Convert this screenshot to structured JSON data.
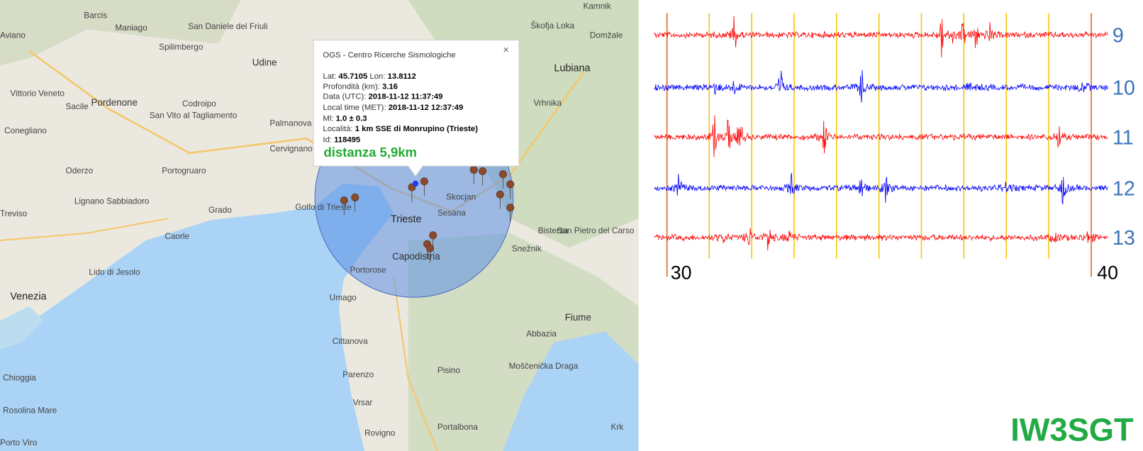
{
  "map": {
    "labels": [
      "Barcis",
      "Maniago",
      "San Daniele del Friuli",
      "Spilimbergo",
      "Aviano",
      "Udine",
      "Vittorio Veneto",
      "Pordenone",
      "Sacile",
      "Codroipo",
      "San Vito al Tagliamento",
      "Conegliano",
      "Palmanova",
      "Cervignano del Friuli",
      "Oderzo",
      "Portogruaro",
      "Grado",
      "Lignano Sabbiadoro",
      "Treviso",
      "Caorle",
      "Lido di Jesolo",
      "Venezia",
      "Golfo di Trieste",
      "Trieste",
      "Sesana",
      "Capodistria",
      "Portorose",
      "Umago",
      "Cittanova",
      "Parenzo",
      "Vrsar",
      "Rovigno",
      "Pisino",
      "Lubiana",
      "Vrhnika",
      "Bisterza",
      "Snežnik",
      "Abbazia",
      "Fiume",
      "Moščenička Draga",
      "Chioggia",
      "Rosolina Mare",
      "Porto Viro",
      "Kamnik",
      "Škofja Loka",
      "Domžale",
      "Portalbona",
      "Krk",
      "Skocjan",
      "San Pietro del Carso"
    ]
  },
  "popup": {
    "title": "OGS - Centro Ricerche Sismologiche",
    "close": "×",
    "lines": [
      {
        "label": "Lat:",
        "value": "45.7105"
      },
      {
        "label": "Lon:",
        "value": "13.8112"
      },
      {
        "label": "Profondità (km):",
        "value": "3.16"
      },
      {
        "label": "Data (UTC):",
        "value": "2018-11-12 11:37:49"
      },
      {
        "label": "Local time (MET):",
        "value": "2018-11-12 12:37:49"
      },
      {
        "label": "Ml:",
        "value": "1.0 ± 0.3"
      },
      {
        "label": "Località:",
        "value": "1 km SSE di Monrupino (Trieste)"
      },
      {
        "label": "Id:",
        "value": "118495"
      }
    ],
    "distance": "distanza 5,9km"
  },
  "seismogram": {
    "traces": [
      {
        "label": "9",
        "color": "#ff0000"
      },
      {
        "label": "10",
        "color": "#0000ff"
      },
      {
        "label": "11",
        "color": "#ff0000"
      },
      {
        "label": "12",
        "color": "#0000ff"
      },
      {
        "label": "13",
        "color": "#ff0000"
      }
    ],
    "time_labels": [
      "30",
      "40"
    ],
    "station": "IW3SGT"
  }
}
